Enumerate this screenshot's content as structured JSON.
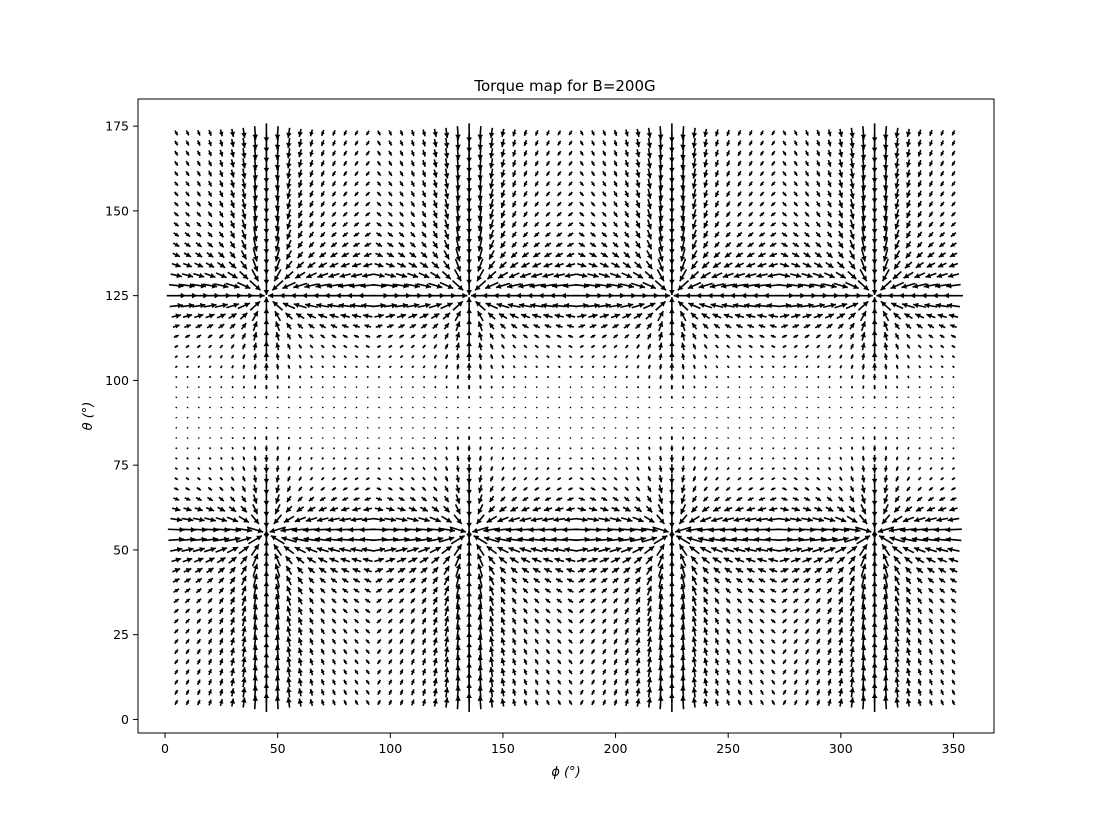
{
  "chart_data": {
    "type": "quiver",
    "title": "Torque map for B=200G",
    "xlabel": "ϕ (°)",
    "ylabel": "θ (°)",
    "xlim": [
      -12,
      368
    ],
    "ylim": [
      -4,
      183
    ],
    "xticks": [
      0,
      50,
      100,
      150,
      200,
      250,
      300,
      350
    ],
    "yticks": [
      0,
      25,
      50,
      75,
      100,
      125,
      150,
      175
    ],
    "grid": false,
    "legend": "none",
    "arrow_color": "#000000",
    "grid_phi": {
      "start": 5,
      "stop": 350,
      "step": 5
    },
    "grid_theta": {
      "start": 5,
      "stop": 175,
      "step": 3
    },
    "node_phi": [
      45,
      135,
      225,
      315
    ],
    "node_theta": [
      55,
      125
    ],
    "field_model": "torque vectors converge on nodes at phi = 45, 135, 225, 315 and theta = 55, 125; vanishing torque along theta = 90"
  }
}
